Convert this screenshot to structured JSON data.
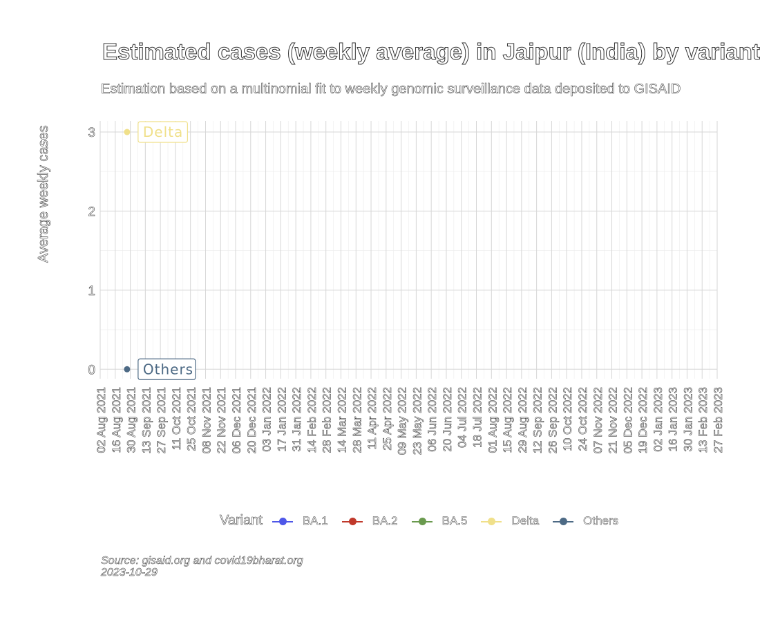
{
  "chart_data": {
    "type": "line",
    "title": "Estimated cases (weekly average) in Jaipur (India) by variant",
    "subtitle": "Estimation based on a multinomial fit to weekly genomic surveillance data deposited to GISAID",
    "ylabel": "Average weekly cases",
    "xlabel": "",
    "x_ticks": [
      "02 Aug 2021",
      "16 Aug 2021",
      "30 Aug 2021",
      "13 Sep 2021",
      "27 Sep 2021",
      "11 Oct 2021",
      "25 Oct 2021",
      "08 Nov 2021",
      "22 Nov 2021",
      "06 Dec 2021",
      "20 Dec 2021",
      "03 Jan 2022",
      "17 Jan 2022",
      "31 Jan 2022",
      "14 Feb 2022",
      "28 Feb 2022",
      "14 Mar 2022",
      "28 Mar 2022",
      "11 Apr 2022",
      "25 Apr 2022",
      "09 May 2022",
      "23 May 2022",
      "06 Jun 2022",
      "20 Jun 2022",
      "04 Jul 2022",
      "18 Jul 2022",
      "01 Aug 2022",
      "15 Aug 2022",
      "29 Aug 2022",
      "12 Sep 2022",
      "26 Sep 2022",
      "10 Oct 2022",
      "24 Oct 2022",
      "07 Nov 2022",
      "21 Nov 2022",
      "05 Dec 2022",
      "19 Dec 2022",
      "02 Jan 2023",
      "16 Jan 2023",
      "30 Jan 2023",
      "13 Feb 2023",
      "27 Feb 2023"
    ],
    "xlim": [
      "02 Aug 2021",
      "27 Feb 2023"
    ],
    "y_ticks": [
      0,
      1,
      2,
      3
    ],
    "ylim": [
      -0.12,
      3.14
    ],
    "grid": true,
    "legend_position": "bottom",
    "legend_title": "Variant",
    "series": [
      {
        "name": "BA.1",
        "color": "#4e57e8",
        "points": []
      },
      {
        "name": "BA.2",
        "color": "#c0392b",
        "points": []
      },
      {
        "name": "BA.5",
        "color": "#6a9a4e",
        "points": []
      },
      {
        "name": "Delta",
        "color": "#f0e08a",
        "points": [
          {
            "x": "27 Aug 2021",
            "y": 3
          }
        ],
        "label": "Delta"
      },
      {
        "name": "Others",
        "color": "#4d6a85",
        "points": [
          {
            "x": "27 Aug 2021",
            "y": 0
          }
        ],
        "label": "Others"
      }
    ]
  },
  "caption": {
    "line1": "Source: gisaid.org and covid19bharat.org",
    "line2": "2023-10-29"
  }
}
